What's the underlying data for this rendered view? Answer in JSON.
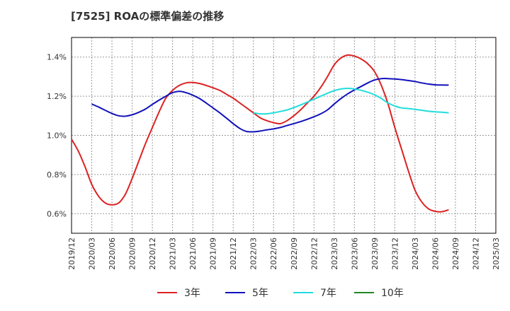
{
  "chart_data": {
    "type": "line",
    "title": "[7525]  ROAの標準偏差の推移",
    "xlabel": "",
    "ylabel": "",
    "x_ticks": [
      "2019/12",
      "2020/03",
      "2020/06",
      "2020/09",
      "2020/12",
      "2021/03",
      "2021/06",
      "2021/09",
      "2021/12",
      "2022/03",
      "2022/06",
      "2022/09",
      "2022/12",
      "2023/03",
      "2023/06",
      "2023/09",
      "2023/12",
      "2024/03",
      "2024/06",
      "2024/09",
      "2024/12",
      "2025/03"
    ],
    "y_ticks": [
      "0.6%",
      "0.8%",
      "1.0%",
      "1.2%",
      "1.4%"
    ],
    "ylim": [
      0.5,
      1.5
    ],
    "y_tick_values": [
      0.6,
      0.8,
      1.0,
      1.2,
      1.4
    ],
    "grid": true,
    "legend_position": "bottom",
    "series": [
      {
        "name": "3年",
        "color": "#dd2222",
        "values": [
          [
            "2019/12",
            0.98
          ],
          [
            "2020/01",
            0.92
          ],
          [
            "2020/02",
            0.84
          ],
          [
            "2020/03",
            0.75
          ],
          [
            "2020/04",
            0.69
          ],
          [
            "2020/05",
            0.655
          ],
          [
            "2020/06",
            0.645
          ],
          [
            "2020/07",
            0.655
          ],
          [
            "2020/08",
            0.7
          ],
          [
            "2020/09",
            0.78
          ],
          [
            "2020/10",
            0.87
          ],
          [
            "2020/11",
            0.96
          ],
          [
            "2020/12",
            1.04
          ],
          [
            "2021/01",
            1.12
          ],
          [
            "2021/02",
            1.19
          ],
          [
            "2021/03",
            1.23
          ],
          [
            "2021/04",
            1.255
          ],
          [
            "2021/05",
            1.268
          ],
          [
            "2021/06",
            1.27
          ],
          [
            "2021/07",
            1.265
          ],
          [
            "2021/08",
            1.255
          ],
          [
            "2021/09",
            1.243
          ],
          [
            "2021/10",
            1.23
          ],
          [
            "2021/11",
            1.21
          ],
          [
            "2021/12",
            1.19
          ],
          [
            "2022/01",
            1.165
          ],
          [
            "2022/02",
            1.14
          ],
          [
            "2022/03",
            1.115
          ],
          [
            "2022/04",
            1.09
          ],
          [
            "2022/05",
            1.075
          ],
          [
            "2022/06",
            1.065
          ],
          [
            "2022/07",
            1.06
          ],
          [
            "2022/08",
            1.075
          ],
          [
            "2022/09",
            1.1
          ],
          [
            "2022/10",
            1.13
          ],
          [
            "2022/11",
            1.165
          ],
          [
            "2022/12",
            1.2
          ],
          [
            "2023/01",
            1.245
          ],
          [
            "2023/02",
            1.3
          ],
          [
            "2023/03",
            1.36
          ],
          [
            "2023/04",
            1.395
          ],
          [
            "2023/05",
            1.41
          ],
          [
            "2023/06",
            1.405
          ],
          [
            "2023/07",
            1.39
          ],
          [
            "2023/08",
            1.365
          ],
          [
            "2023/09",
            1.325
          ],
          [
            "2023/10",
            1.255
          ],
          [
            "2023/11",
            1.16
          ],
          [
            "2023/12",
            1.04
          ],
          [
            "2024/01",
            0.93
          ],
          [
            "2024/02",
            0.82
          ],
          [
            "2024/03",
            0.72
          ],
          [
            "2024/04",
            0.66
          ],
          [
            "2024/05",
            0.625
          ],
          [
            "2024/06",
            0.612
          ],
          [
            "2024/07",
            0.61
          ],
          [
            "2024/08",
            0.62
          ]
        ]
      },
      {
        "name": "5年",
        "color": "#1111bb",
        "values": [
          [
            "2020/03",
            1.16
          ],
          [
            "2020/04",
            1.145
          ],
          [
            "2020/05",
            1.128
          ],
          [
            "2020/06",
            1.112
          ],
          [
            "2020/07",
            1.1
          ],
          [
            "2020/08",
            1.098
          ],
          [
            "2020/09",
            1.105
          ],
          [
            "2020/10",
            1.118
          ],
          [
            "2020/11",
            1.135
          ],
          [
            "2020/12",
            1.158
          ],
          [
            "2021/01",
            1.18
          ],
          [
            "2021/02",
            1.2
          ],
          [
            "2021/03",
            1.218
          ],
          [
            "2021/04",
            1.225
          ],
          [
            "2021/05",
            1.218
          ],
          [
            "2021/06",
            1.205
          ],
          [
            "2021/07",
            1.188
          ],
          [
            "2021/08",
            1.165
          ],
          [
            "2021/09",
            1.14
          ],
          [
            "2021/10",
            1.115
          ],
          [
            "2021/11",
            1.088
          ],
          [
            "2021/12",
            1.06
          ],
          [
            "2022/01",
            1.035
          ],
          [
            "2022/02",
            1.02
          ],
          [
            "2022/03",
            1.018
          ],
          [
            "2022/04",
            1.022
          ],
          [
            "2022/05",
            1.028
          ],
          [
            "2022/06",
            1.033
          ],
          [
            "2022/07",
            1.04
          ],
          [
            "2022/08",
            1.05
          ],
          [
            "2022/09",
            1.06
          ],
          [
            "2022/10",
            1.07
          ],
          [
            "2022/11",
            1.082
          ],
          [
            "2022/12",
            1.095
          ],
          [
            "2023/01",
            1.11
          ],
          [
            "2023/02",
            1.13
          ],
          [
            "2023/03",
            1.16
          ],
          [
            "2023/04",
            1.188
          ],
          [
            "2023/05",
            1.212
          ],
          [
            "2023/06",
            1.232
          ],
          [
            "2023/07",
            1.25
          ],
          [
            "2023/08",
            1.268
          ],
          [
            "2023/09",
            1.283
          ],
          [
            "2023/10",
            1.29
          ],
          [
            "2023/11",
            1.29
          ],
          [
            "2023/12",
            1.288
          ],
          [
            "2024/01",
            1.285
          ],
          [
            "2024/02",
            1.28
          ],
          [
            "2024/03",
            1.275
          ],
          [
            "2024/04",
            1.268
          ],
          [
            "2024/05",
            1.262
          ],
          [
            "2024/06",
            1.258
          ],
          [
            "2024/07",
            1.257
          ],
          [
            "2024/08",
            1.257
          ]
        ]
      },
      {
        "name": "7年",
        "color": "#22dddd",
        "values": [
          [
            "2022/03",
            1.115
          ],
          [
            "2022/04",
            1.11
          ],
          [
            "2022/05",
            1.11
          ],
          [
            "2022/06",
            1.115
          ],
          [
            "2022/07",
            1.122
          ],
          [
            "2022/08",
            1.13
          ],
          [
            "2022/09",
            1.142
          ],
          [
            "2022/10",
            1.155
          ],
          [
            "2022/11",
            1.17
          ],
          [
            "2022/12",
            1.185
          ],
          [
            "2023/01",
            1.2
          ],
          [
            "2023/02",
            1.215
          ],
          [
            "2023/03",
            1.228
          ],
          [
            "2023/04",
            1.237
          ],
          [
            "2023/05",
            1.24
          ],
          [
            "2023/06",
            1.237
          ],
          [
            "2023/07",
            1.23
          ],
          [
            "2023/08",
            1.22
          ],
          [
            "2023/09",
            1.207
          ],
          [
            "2023/10",
            1.188
          ],
          [
            "2023/11",
            1.165
          ],
          [
            "2023/12",
            1.15
          ],
          [
            "2024/01",
            1.14
          ],
          [
            "2024/02",
            1.137
          ],
          [
            "2024/03",
            1.133
          ],
          [
            "2024/04",
            1.128
          ],
          [
            "2024/05",
            1.123
          ],
          [
            "2024/06",
            1.12
          ],
          [
            "2024/07",
            1.118
          ],
          [
            "2024/08",
            1.115
          ]
        ]
      },
      {
        "name": "10年",
        "color": "#228822",
        "values": []
      }
    ]
  }
}
